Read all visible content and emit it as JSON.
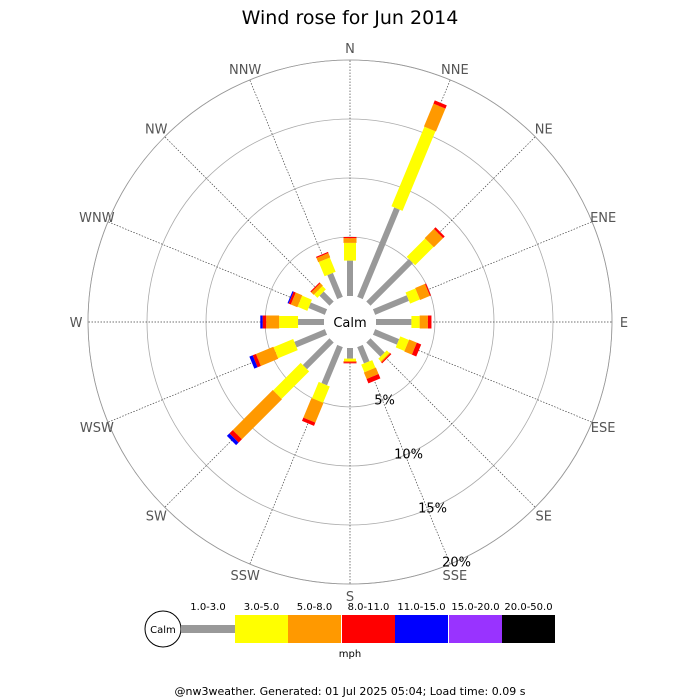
{
  "chart_data": {
    "type": "wind-rose",
    "title": "Wind rose for Jun 2014",
    "directions": [
      "N",
      "NNE",
      "NE",
      "ENE",
      "E",
      "ESE",
      "SE",
      "SSE",
      "S",
      "SSW",
      "SW",
      "WSW",
      "W",
      "WNW",
      "NW",
      "NNW"
    ],
    "ring_labels": [
      "5%",
      "10%",
      "15%",
      "20%"
    ],
    "ring_values": [
      5,
      10,
      15,
      20
    ],
    "max_radius_value": 20,
    "calm_label": "Calm",
    "unit": "mph",
    "speed_bins": [
      {
        "label": "1.0-3.0",
        "color": "#999999"
      },
      {
        "label": "3.0-5.0",
        "color": "#ffff00"
      },
      {
        "label": "5.0-8.0",
        "color": "#ff9900"
      },
      {
        "label": "8.0-11.0",
        "color": "#ff0000"
      },
      {
        "label": "11.0-15.0",
        "color": "#0000ff"
      },
      {
        "label": "15.0-20.0",
        "color": "#9933ff"
      },
      {
        "label": "20.0-50.0",
        "color": "#000000"
      }
    ],
    "cumulative_percent": {
      "N": [
        3.0,
        4.5,
        4.9,
        5.0,
        5.0,
        5.0,
        5.0
      ],
      "NNE": [
        8.2,
        15.5,
        17.6,
        17.9,
        17.9,
        17.9,
        17.9
      ],
      "NE": [
        5.1,
        7.3,
        8.4,
        8.6,
        8.6,
        8.6,
        8.6
      ],
      "ENE": [
        3.1,
        4.0,
        4.9,
        5.0,
        5.0,
        5.0,
        5.0
      ],
      "E": [
        3.0,
        3.7,
        4.4,
        4.7,
        4.7,
        4.7,
        4.7
      ],
      "ESE": [
        2.2,
        3.0,
        3.7,
        4.1,
        4.1,
        4.1,
        4.1
      ],
      "SE": [
        1.7,
        2.0,
        2.1,
        2.2,
        2.2,
        2.2,
        2.2
      ],
      "SSE": [
        1.5,
        2.2,
        2.8,
        3.2,
        3.2,
        3.2,
        3.2
      ],
      "S": [
        0.9,
        1.1,
        1.2,
        1.3,
        1.3,
        1.3,
        1.3
      ],
      "SSW": [
        3.5,
        5.0,
        6.8,
        7.1,
        7.1,
        7.1,
        7.1
      ],
      "SW": [
        3.2,
        6.5,
        11.3,
        11.7,
        12.0,
        12.0,
        12.0
      ],
      "WSW": [
        2.8,
        4.6,
        6.2,
        6.5,
        6.8,
        6.8,
        6.8
      ],
      "W": [
        2.2,
        3.8,
        4.9,
        5.2,
        5.4,
        5.4,
        5.4
      ],
      "WNW": [
        1.5,
        2.4,
        3.0,
        3.2,
        3.3,
        3.3,
        3.3
      ],
      "NW": [
        1.2,
        1.6,
        1.9,
        2.0,
        2.0,
        2.0,
        2.0
      ],
      "NNW": [
        2.2,
        3.5,
        3.9,
        4.0,
        4.0,
        4.0,
        4.0
      ]
    }
  },
  "footer": "@nw3weather. Generated: 01 Jul 2025 05:04; Load time: 0.09 s"
}
